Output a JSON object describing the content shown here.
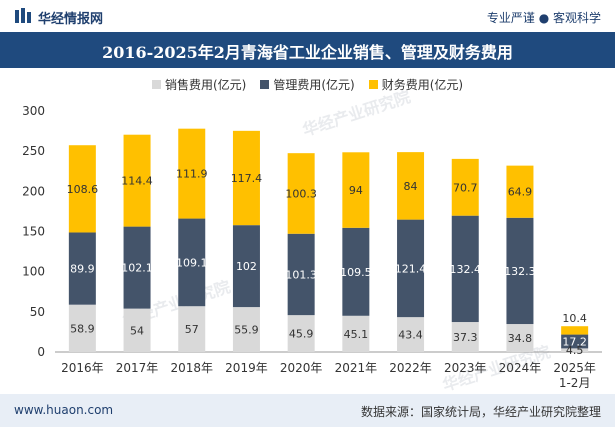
{
  "header": {
    "brand": "华经情报网",
    "slogan": "专业严谨 ● 客观科学"
  },
  "watermark": "华经产业研究院",
  "footer": {
    "site": "www.huaon.com",
    "source": "数据来源：国家统计局，华经产业研究院整理"
  },
  "colors": {
    "title_bg": "#1f4a7e",
    "sales": "#d9d9d9",
    "management": "#44546a",
    "finance": "#ffc000"
  },
  "chart_data": {
    "type": "bar",
    "stacked": true,
    "title": "2016-2025年2月青海省工业企业销售、管理及财务费用",
    "categories": [
      "2016年",
      "2017年",
      "2018年",
      "2019年",
      "2020年",
      "2021年",
      "2022年",
      "2023年",
      "2024年",
      "2025年\n1-2月"
    ],
    "series": [
      {
        "name": "销售费用(亿元)",
        "values": [
          58.9,
          54,
          57,
          55.9,
          45.9,
          45.1,
          43.4,
          37.3,
          34.8,
          4.5
        ]
      },
      {
        "name": "管理费用(亿元)",
        "values": [
          89.9,
          102.1,
          109.1,
          102,
          101.3,
          109.5,
          121.4,
          132.4,
          132.3,
          17.2
        ]
      },
      {
        "name": "财务费用(亿元)",
        "values": [
          108.6,
          114.4,
          111.9,
          117.4,
          100.3,
          94,
          84,
          70.7,
          64.9,
          10.4
        ]
      }
    ],
    "ylim": [
      0,
      300
    ],
    "yticks": [
      0,
      50,
      100,
      150,
      200,
      250,
      300
    ],
    "xlabel": "",
    "ylabel": ""
  }
}
